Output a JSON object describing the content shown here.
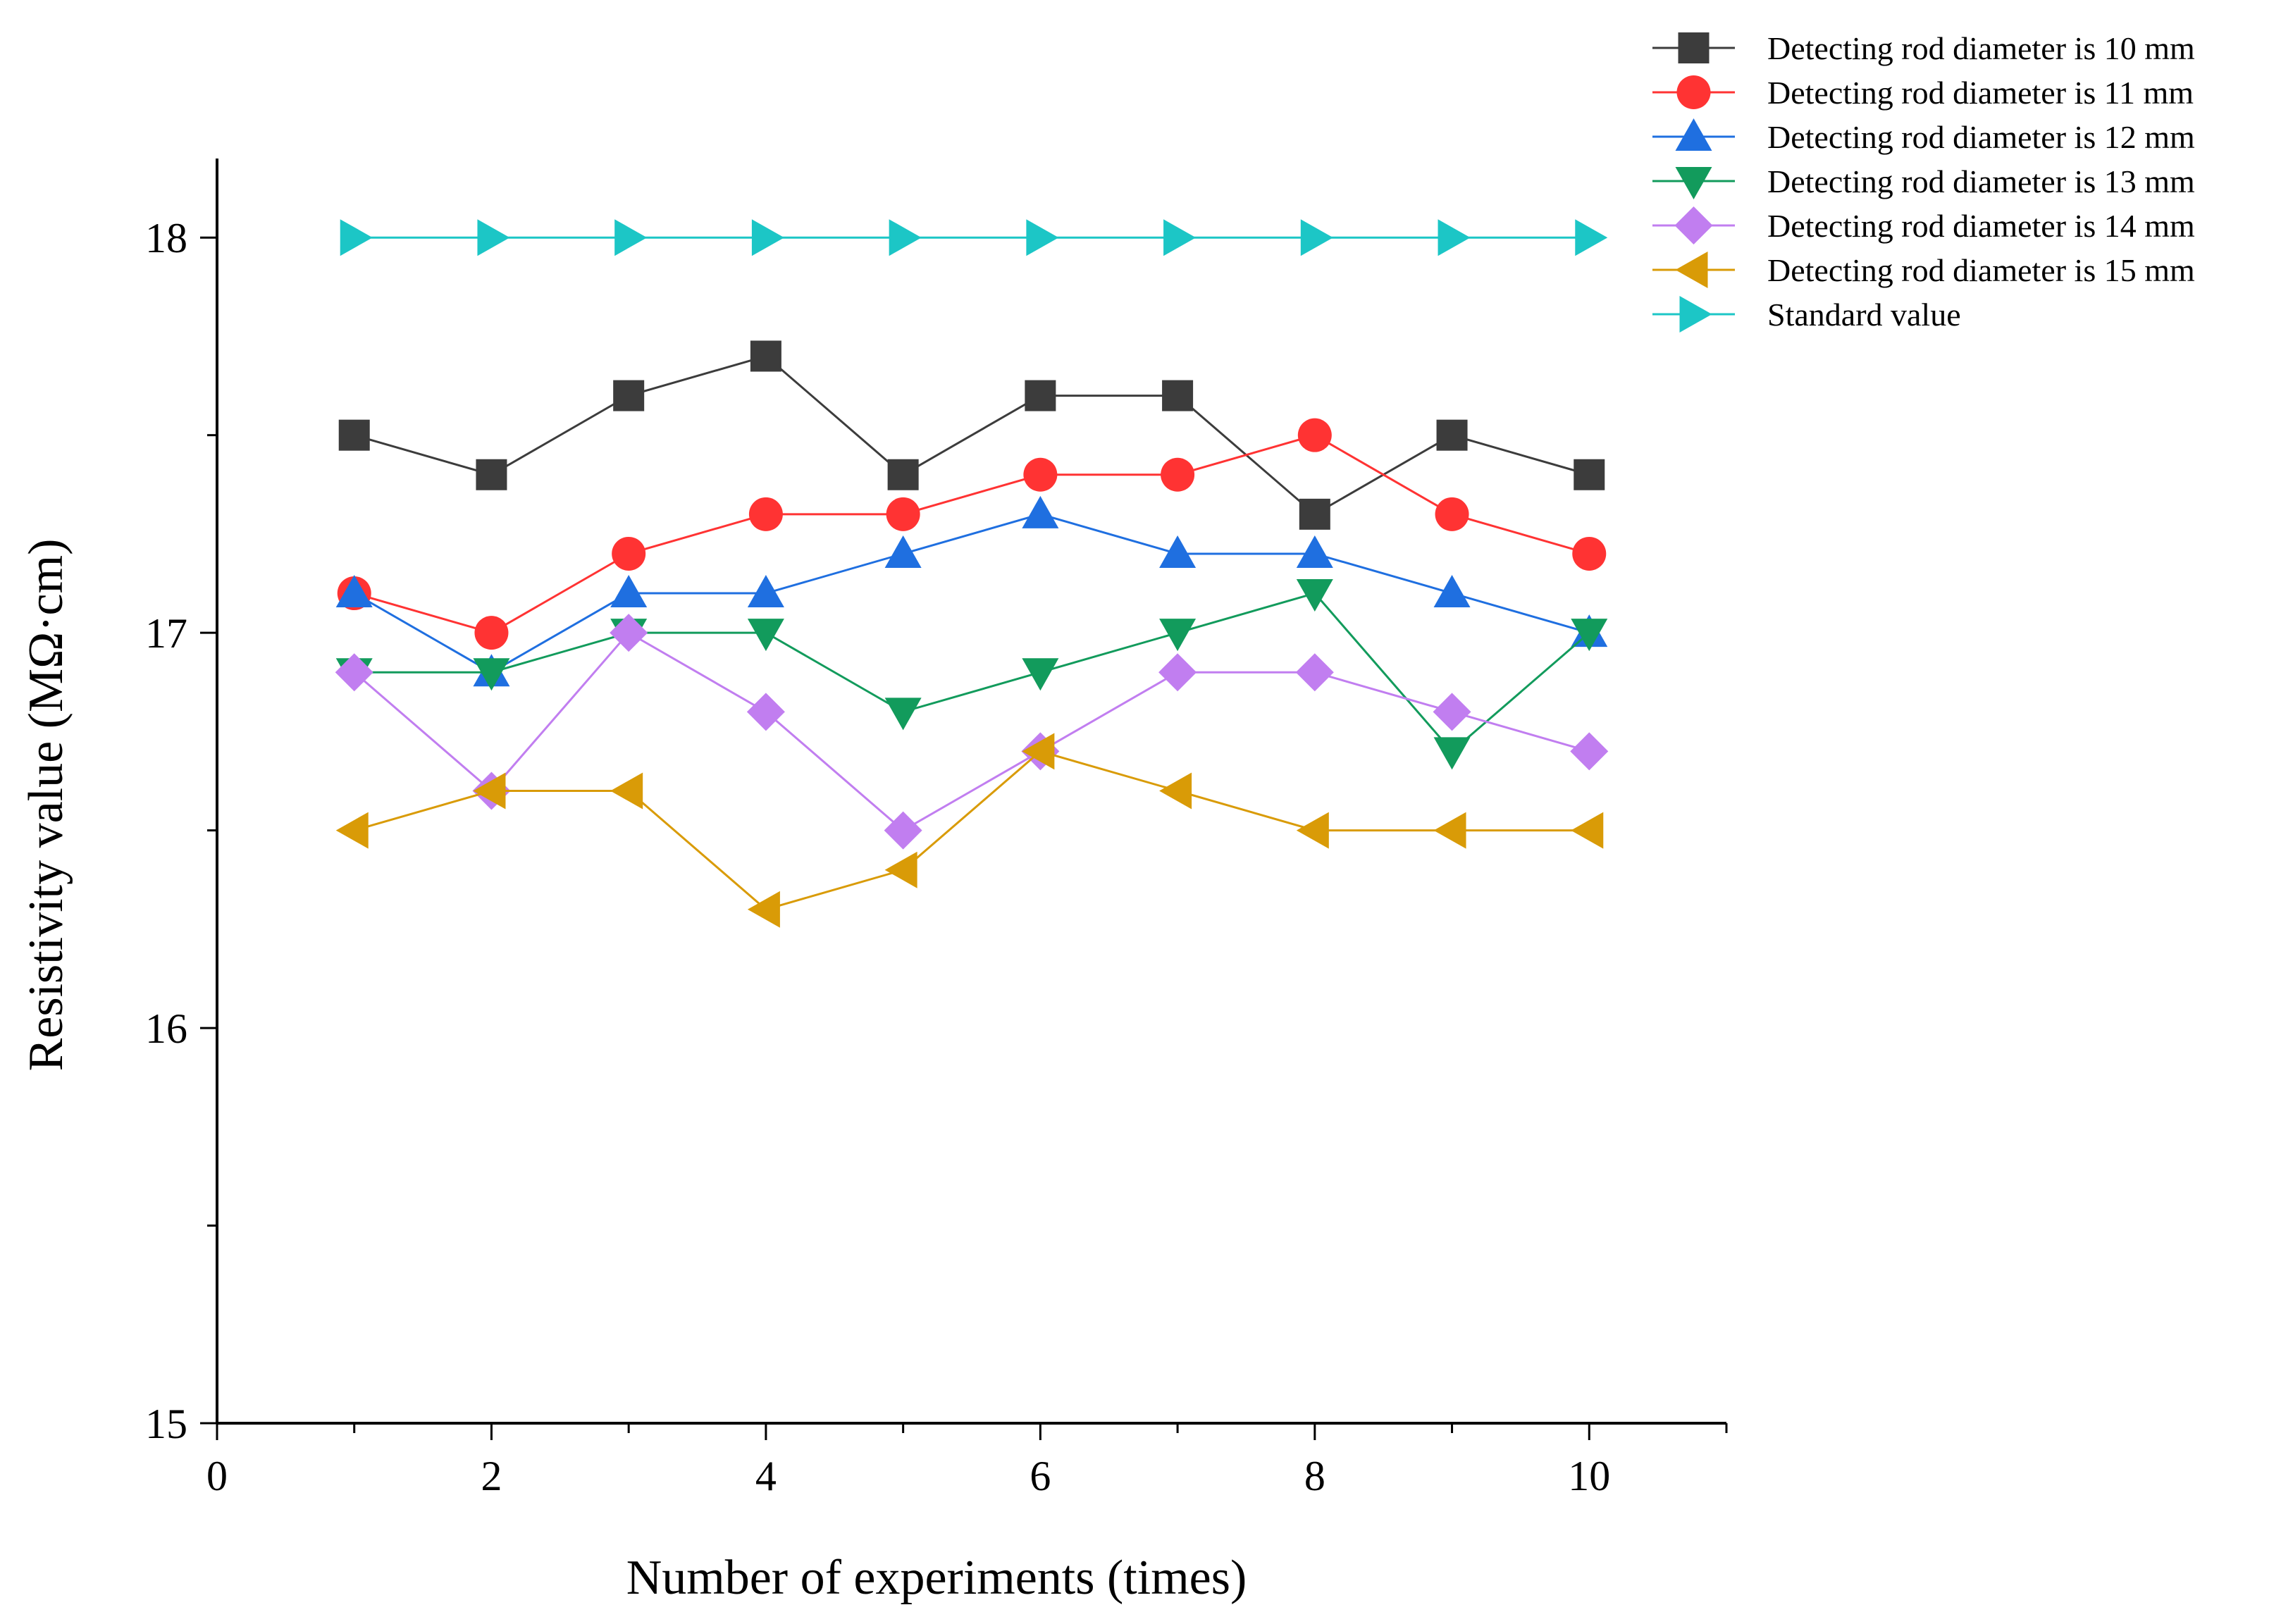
{
  "chart_data": {
    "type": "line",
    "title": "",
    "xlabel": "Number of experiments (times)",
    "ylabel": "Resistivity value (MΩ·cm)",
    "xlim": [
      0,
      11
    ],
    "ylim": [
      15,
      18.2
    ],
    "x_ticks": [
      0,
      2,
      4,
      6,
      8,
      10
    ],
    "y_ticks": [
      15,
      16,
      17,
      18
    ],
    "grid": false,
    "legend_position": "top-right",
    "x": [
      1,
      2,
      3,
      4,
      5,
      6,
      7,
      8,
      9,
      10
    ],
    "series": [
      {
        "name": "Detecting rod diameter is 10 mm",
        "marker": "square",
        "color": "#3c3c3c",
        "values": [
          17.5,
          17.4,
          17.6,
          17.7,
          17.4,
          17.6,
          17.6,
          17.3,
          17.5,
          17.4
        ]
      },
      {
        "name": "Detecting rod diameter is 11 mm",
        "marker": "circle",
        "color": "#ff3333",
        "values": [
          17.1,
          17.0,
          17.2,
          17.3,
          17.3,
          17.4,
          17.4,
          17.5,
          17.3,
          17.2
        ]
      },
      {
        "name": "Detecting rod diameter is 12 mm",
        "marker": "triangle-up",
        "color": "#1f6fe0",
        "values": [
          17.1,
          16.9,
          17.1,
          17.1,
          17.2,
          17.3,
          17.2,
          17.2,
          17.1,
          17.0
        ]
      },
      {
        "name": "Detecting rod diameter is 13 mm",
        "marker": "triangle-down",
        "color": "#129b5c",
        "values": [
          16.9,
          16.9,
          17.0,
          17.0,
          16.8,
          16.9,
          17.0,
          17.1,
          16.7,
          17.0
        ]
      },
      {
        "name": "Detecting rod diameter is 14 mm",
        "marker": "diamond",
        "color": "#c17ef0",
        "values": [
          16.9,
          16.6,
          17.0,
          16.8,
          16.5,
          16.7,
          16.9,
          16.9,
          16.8,
          16.7
        ]
      },
      {
        "name": "Detecting rod diameter is 15 mm",
        "marker": "triangle-left",
        "color": "#d99b07",
        "values": [
          16.5,
          16.6,
          16.6,
          16.3,
          16.4,
          16.7,
          16.6,
          16.5,
          16.5,
          16.5
        ]
      },
      {
        "name": "Standard value",
        "marker": "triangle-right",
        "color": "#1cc6c6",
        "values": [
          18.0,
          18.0,
          18.0,
          18.0,
          18.0,
          18.0,
          18.0,
          18.0,
          18.0,
          18.0
        ]
      }
    ]
  }
}
